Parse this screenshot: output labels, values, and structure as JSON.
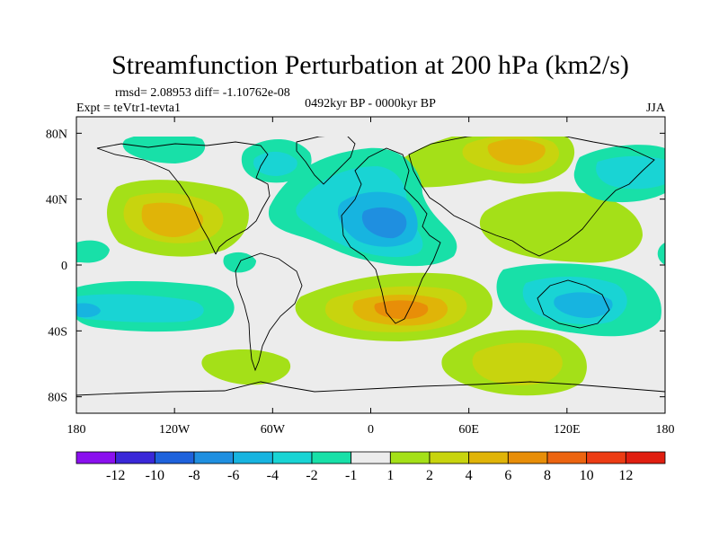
{
  "chart_data": {
    "type": "contour_map",
    "title": "Streamfunction Perturbation at 200 hPa (km2/s)",
    "stats_line": "rmsd= 2.08953 diff= -1.10762e-08",
    "left_label": "Expt = teVtr1-tevta1",
    "center_label": "0492kyr BP - 0000kyr BP",
    "right_label": "JJA",
    "x_ticks": [
      {
        "value": -180,
        "label": "180"
      },
      {
        "value": -120,
        "label": "120W"
      },
      {
        "value": -60,
        "label": "60W"
      },
      {
        "value": 0,
        "label": "0"
      },
      {
        "value": 60,
        "label": "60E"
      },
      {
        "value": 120,
        "label": "120E"
      },
      {
        "value": 180,
        "label": "180"
      }
    ],
    "y_ticks": [
      {
        "value": 80,
        "label": "80N"
      },
      {
        "value": 40,
        "label": "40N"
      },
      {
        "value": 0,
        "label": "0"
      },
      {
        "value": -40,
        "label": "40S"
      },
      {
        "value": -80,
        "label": "80S"
      }
    ],
    "xlim": [
      -180,
      180
    ],
    "ylim": [
      -90,
      90
    ],
    "colorbar": {
      "levels": [
        -12,
        -10,
        -8,
        -6,
        -4,
        -2,
        -1,
        1,
        2,
        4,
        6,
        8,
        10,
        12
      ],
      "labels": [
        "-12",
        "-10",
        "-8",
        "-6",
        "-4",
        "-2",
        "-1",
        "1",
        "2",
        "4",
        "6",
        "8",
        "10",
        "12"
      ],
      "colors": [
        "#8a10ee",
        "#3a28d8",
        "#1e62dc",
        "#1f8fe0",
        "#17b4e0",
        "#19d4d4",
        "#18e0a8",
        "#ececec",
        "#a4e018",
        "#c8d40e",
        "#e0b408",
        "#e88e08",
        "#ec6410",
        "#ec3c14",
        "#e01e10"
      ]
    },
    "features": [
      {
        "name": "n-pacific-positive",
        "lon": -130,
        "lat": 32,
        "value": 6,
        "rx": 30,
        "ry": 15
      },
      {
        "name": "eurasia-positive",
        "lon": 100,
        "lat": 70,
        "value": 6,
        "rx": 42,
        "ry": 15
      },
      {
        "name": "w-pacific-positive",
        "lon": 130,
        "lat": 30,
        "value": 2,
        "rx": 30,
        "ry": 18
      },
      {
        "name": "s-africa-positive",
        "lon": 20,
        "lat": -26,
        "value": 6,
        "rx": 45,
        "ry": 14
      },
      {
        "name": "s-ocean-positive",
        "lon": 85,
        "lat": -62,
        "value": 4,
        "rx": 35,
        "ry": 16
      },
      {
        "name": "atlantic-negative",
        "lon": -20,
        "lat": 40,
        "value": -4,
        "rx": 40,
        "ry": 30
      },
      {
        "name": "sahara-negative",
        "lon": 15,
        "lat": 22,
        "value": -6,
        "rx": 30,
        "ry": 16
      },
      {
        "name": "s-pacific-negative",
        "lon": -150,
        "lat": -30,
        "value": -4,
        "rx": 35,
        "ry": 10
      },
      {
        "name": "australia-negative",
        "lon": 135,
        "lat": -25,
        "value": -4,
        "rx": 35,
        "ry": 15
      },
      {
        "name": "n-pacific-high-lat-negative",
        "lon": 170,
        "lat": 60,
        "value": -2,
        "rx": 25,
        "ry": 15
      }
    ]
  }
}
